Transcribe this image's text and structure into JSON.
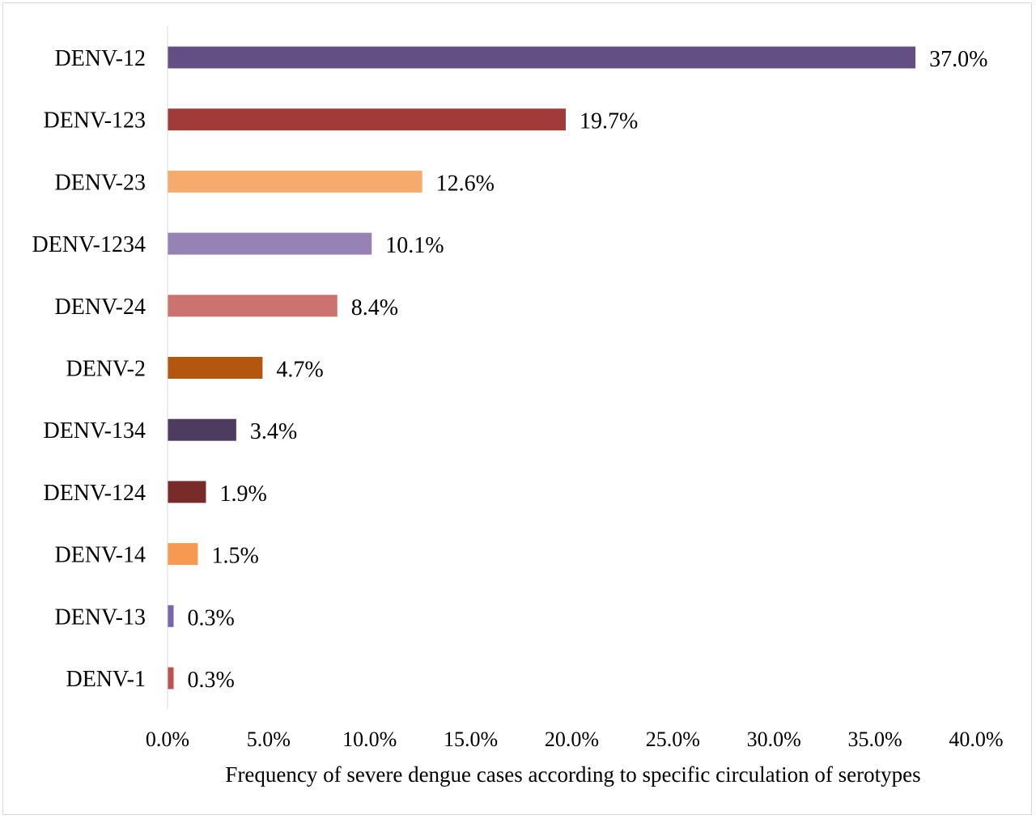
{
  "chart_data": {
    "type": "bar",
    "orientation": "horizontal",
    "categories": [
      "DENV-12",
      "DENV-123",
      "DENV-23",
      "DENV-1234",
      "DENV-24",
      "DENV-2",
      "DENV-134",
      "DENV-124",
      "DENV-14",
      "DENV-13",
      "DENV-1"
    ],
    "values": [
      37.0,
      19.7,
      12.6,
      10.1,
      8.4,
      4.7,
      3.4,
      1.9,
      1.5,
      0.3,
      0.3
    ],
    "value_labels": [
      "37.0%",
      "19.7%",
      "12.6%",
      "10.1%",
      "8.4%",
      "4.7%",
      "3.4%",
      "1.9%",
      "1.5%",
      "0.3%",
      "0.3%"
    ],
    "colors": [
      "#644f84",
      "#a03b39",
      "#f6ab6c",
      "#9682b4",
      "#cc7370",
      "#b5560e",
      "#4d3c60",
      "#772c2a",
      "#f79950",
      "#7a64ad",
      "#c0504d"
    ],
    "xlim": [
      0,
      40
    ],
    "xticks": [
      "0.0%",
      "5.0%",
      "10.0%",
      "15.0%",
      "20.0%",
      "25.0%",
      "30.0%",
      "35.0%",
      "40.0%"
    ],
    "xlabel": "Frequency of severe dengue cases according to specific circulation of serotypes",
    "ylabel": "",
    "title": "",
    "grid": false,
    "legend": "none"
  }
}
